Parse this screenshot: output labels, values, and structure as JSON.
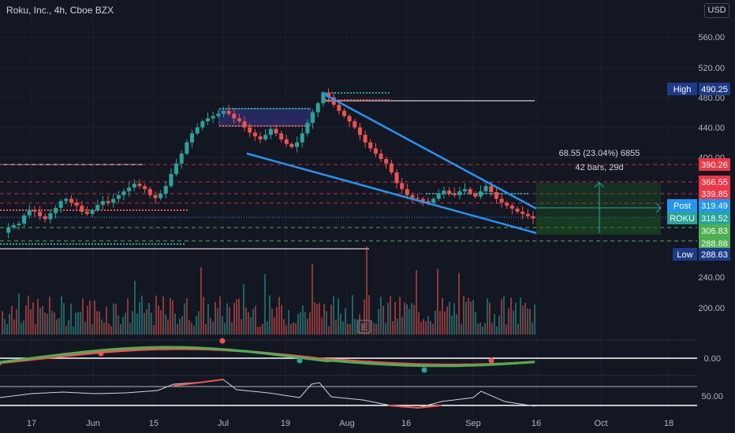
{
  "header": {
    "symbol_title": "Roku, Inc., 4h, Cboe BZX",
    "currency": "USD"
  },
  "colors": {
    "background": "#131722",
    "grid": "#1e222d",
    "up": "#26a69a",
    "down": "#ef5350",
    "channel": "#2196f3",
    "pink_dash": "#f23645",
    "green_dash": "#4caf50",
    "white_line": "#ffffff"
  },
  "chart_data": {
    "type": "candlestick",
    "symbol": "ROKU",
    "interval": "4h",
    "price_axis_ticks": [
      560,
      520,
      480,
      440,
      400
    ],
    "volume_axis_ticks": [
      "240.00",
      "200.00"
    ],
    "osc1_tick": "0.00",
    "osc2_tick": "50.00",
    "x_tick_labels": [
      "17",
      "Jun",
      "15",
      "Jul",
      "19",
      "Aug",
      "16",
      "Sep",
      "16",
      "Oct",
      "18"
    ],
    "price_labels": [
      {
        "name": "High",
        "value": "490.25",
        "color": "#1e3a8a"
      },
      {
        "name": "",
        "value": "390.26",
        "color": "#f23645"
      },
      {
        "name": "",
        "value": "366.55",
        "color": "#f23645"
      },
      {
        "name": "",
        "value": "339.85",
        "color": "#f23645"
      },
      {
        "name": "Post",
        "value": "319.49",
        "color": "#2196f3"
      },
      {
        "name": "ROKU",
        "value": "318.52",
        "color": "#26a69a"
      },
      {
        "name": "",
        "value": "306.83",
        "color": "#4caf50"
      },
      {
        "name": "",
        "value": "288.88",
        "color": "#4caf50"
      },
      {
        "name": "Low",
        "value": "288.63",
        "color": "#1e3a8a"
      }
    ],
    "measure_annotation": {
      "line1": "68.55 (23.04%) 6855",
      "line2": "42 bars, 29d"
    },
    "earnings_marker": "E",
    "price_path": [
      300,
      307,
      310,
      312,
      323,
      330,
      328,
      322,
      318,
      326,
      333,
      342,
      345,
      340,
      336,
      328,
      325,
      330,
      337,
      342,
      340,
      345,
      350,
      355,
      360,
      365,
      362,
      358,
      350,
      346,
      352,
      362,
      378,
      392,
      405,
      420,
      432,
      440,
      448,
      452,
      455,
      458,
      462,
      458,
      452,
      448,
      440,
      433,
      428,
      424,
      430,
      438,
      432,
      424,
      418,
      414,
      420,
      432,
      446,
      460,
      472,
      486,
      480,
      470,
      462,
      455,
      448,
      440,
      430,
      420,
      412,
      405,
      398,
      392,
      380,
      366,
      358,
      350,
      346,
      345,
      342,
      340,
      345,
      352,
      356,
      352,
      350,
      355,
      358,
      352,
      348,
      355,
      362,
      354,
      345,
      340,
      336,
      332,
      328,
      325,
      322,
      319
    ]
  }
}
